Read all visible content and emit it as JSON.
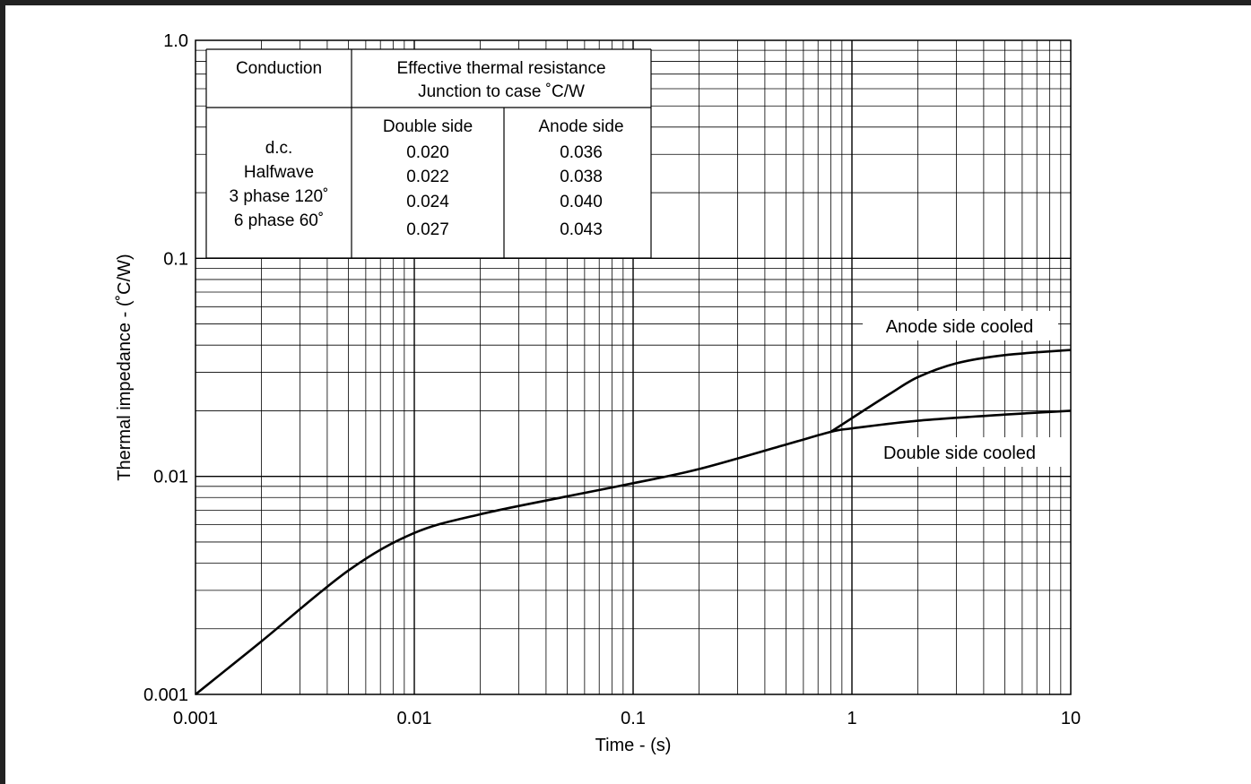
{
  "chart_data": {
    "type": "line",
    "xlabel": "Time - (s)",
    "ylabel": "Thermal impedance - (˚C/W)",
    "x_scale": "log",
    "y_scale": "log",
    "xlim": [
      0.001,
      10
    ],
    "ylim": [
      0.001,
      1.0
    ],
    "grid": true,
    "x_ticks": [
      {
        "value": 0.001,
        "label": "0.001"
      },
      {
        "value": 0.01,
        "label": "0.01"
      },
      {
        "value": 0.1,
        "label": "0.1"
      },
      {
        "value": 1,
        "label": "1"
      },
      {
        "value": 10,
        "label": "10"
      }
    ],
    "y_ticks": [
      {
        "value": 0.001,
        "label": "0.001"
      },
      {
        "value": 0.01,
        "label": "0.01"
      },
      {
        "value": 0.1,
        "label": "0.1"
      },
      {
        "value": 1.0,
        "label": "1.0"
      }
    ],
    "series": [
      {
        "name": "Double side cooled",
        "x": [
          0.001,
          0.002,
          0.005,
          0.01,
          0.02,
          0.05,
          0.1,
          0.2,
          0.5,
          0.8,
          1,
          2,
          5,
          10
        ],
        "y": [
          0.001,
          0.00175,
          0.0037,
          0.0055,
          0.0067,
          0.0081,
          0.0093,
          0.0108,
          0.014,
          0.016,
          0.0166,
          0.018,
          0.0192,
          0.02
        ]
      },
      {
        "name": "Anode side cooled",
        "x": [
          0.8,
          1,
          1.5,
          2,
          3,
          5,
          10
        ],
        "y": [
          0.016,
          0.0185,
          0.024,
          0.0285,
          0.033,
          0.036,
          0.038
        ]
      }
    ]
  },
  "table": {
    "header_conduction": "Conduction",
    "header_resistance_line1": "Effective thermal resistance",
    "header_resistance_line2": "Junction to case ˚C/W",
    "subheader_double": "Double side",
    "subheader_anode": "Anode side",
    "rows": [
      {
        "conduction": "d.c.",
        "double": "0.020",
        "anode": "0.036"
      },
      {
        "conduction": "Halfwave",
        "double": "0.022",
        "anode": "0.038"
      },
      {
        "conduction": "3 phase 120˚",
        "double": "0.024",
        "anode": "0.040"
      },
      {
        "conduction": "6 phase 60˚",
        "double": "0.027",
        "anode": "0.043"
      }
    ]
  }
}
